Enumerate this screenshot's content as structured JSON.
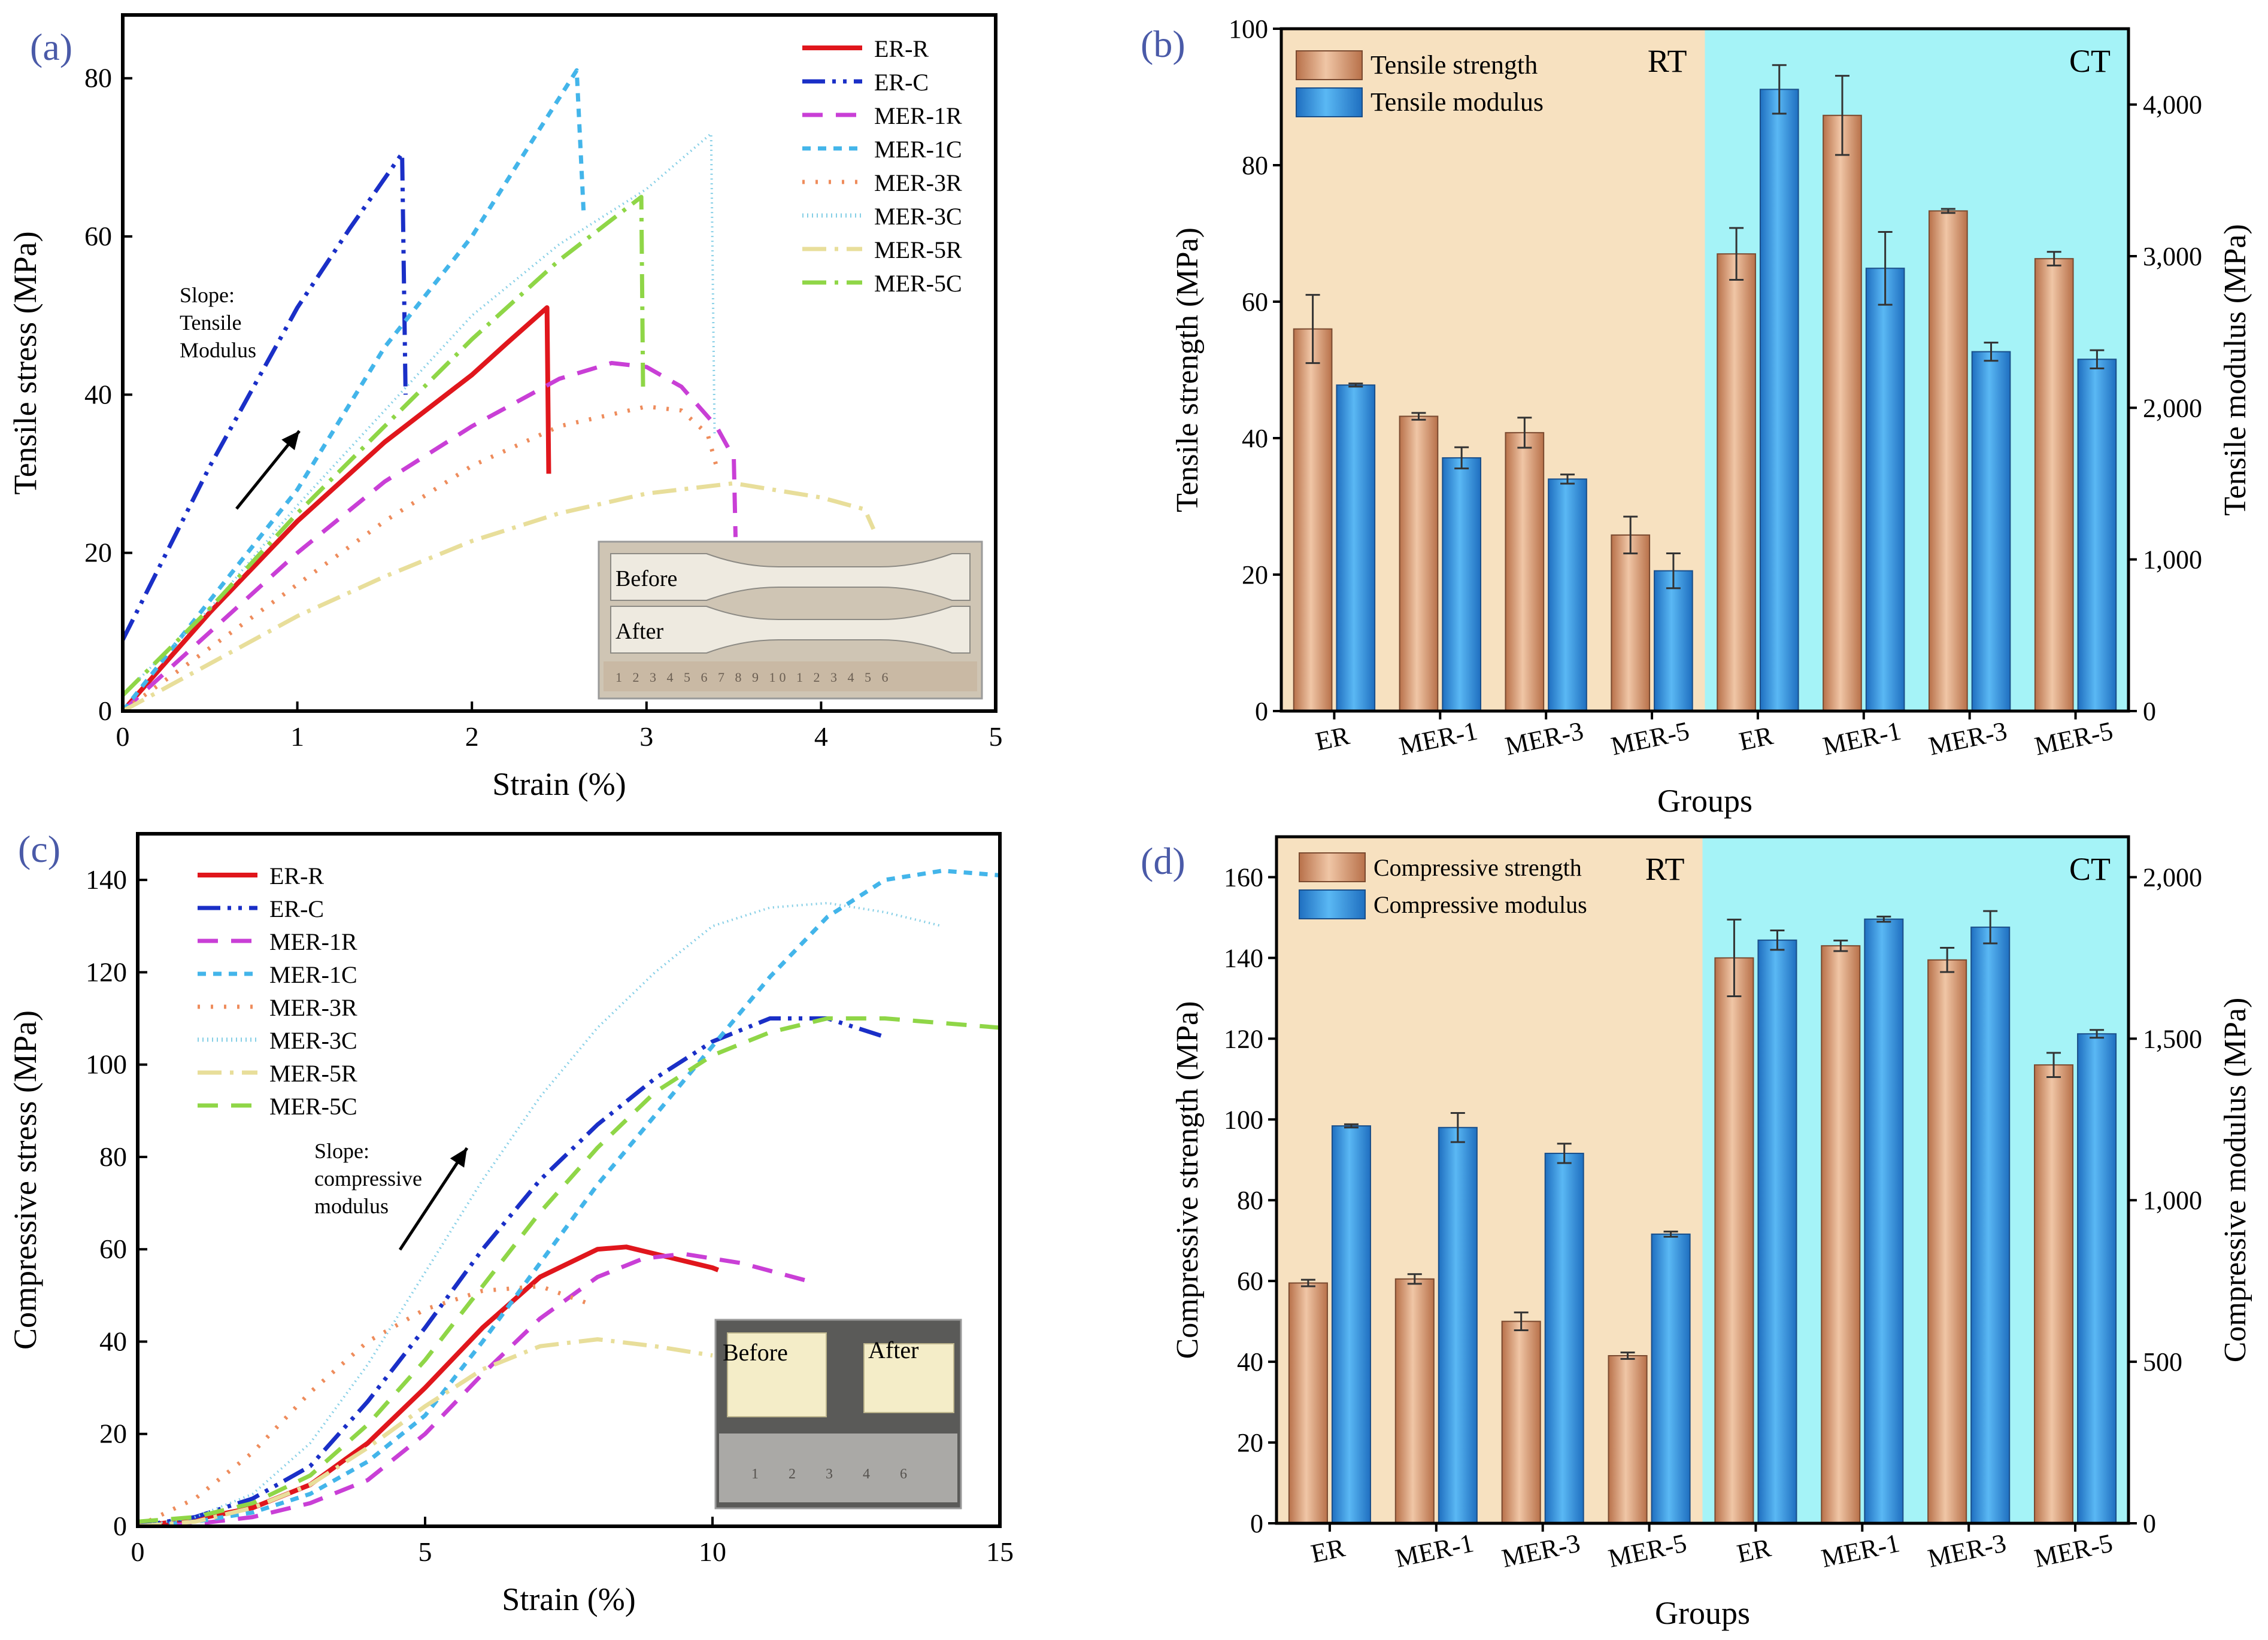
{
  "colors": {
    "ER-R": "#e0161c",
    "ER-C": "#1a2fc7",
    "MER-1R": "#c93fd6",
    "MER-1C": "#43b5ea",
    "MER-3R": "#ee8c5c",
    "MER-3C": "#86cfe6",
    "MER-5R": "#e8de9a",
    "MER-5C": "#8fd647",
    "strength_bar": "#d59a76",
    "modulus_bar": "#2e8fe0",
    "rt_bg": "#f7e1c0",
    "ct_bg": "#a5f3f7",
    "panel_label": "#4a5aa8"
  },
  "chart_data": [
    {
      "id": "a",
      "panel_label": "(a)",
      "type": "line",
      "xlabel": "Strain (%)",
      "ylabel": "Tensile stress (MPa)",
      "xlim": [
        0,
        5
      ],
      "ylim": [
        0,
        88
      ],
      "xticks": [
        0,
        1,
        2,
        3,
        4,
        5
      ],
      "yticks": [
        0,
        20,
        40,
        60,
        80
      ],
      "legend_position": "top-right",
      "annotation": {
        "lines": [
          "Slope:",
          "Tensile",
          "Modulus"
        ]
      },
      "inset": {
        "labels": [
          "Before",
          "After"
        ],
        "ruler": "1 2 3 4 5 6 7 8 9 10 1 2 3 4 5 6"
      },
      "series": [
        {
          "name": "ER-R",
          "style": "solid",
          "points": [
            [
              0,
              0
            ],
            [
              0.5,
              12.5
            ],
            [
              1,
              24
            ],
            [
              1.5,
              34
            ],
            [
              2,
              42.5
            ],
            [
              2.2,
              46.5
            ],
            [
              2.43,
              51
            ],
            [
              2.44,
              30
            ]
          ]
        },
        {
          "name": "ER-C",
          "style": "dashdotdot",
          "points": [
            [
              0,
              9
            ],
            [
              0.5,
              31
            ],
            [
              1,
              51
            ],
            [
              1.3,
              61
            ],
            [
              1.6,
              70.5
            ],
            [
              1.62,
              40
            ]
          ]
        },
        {
          "name": "MER-1R",
          "style": "dash",
          "points": [
            [
              0,
              0
            ],
            [
              0.5,
              10
            ],
            [
              1,
              20
            ],
            [
              1.5,
              29
            ],
            [
              2,
              36
            ],
            [
              2.5,
              42
            ],
            [
              2.8,
              44
            ],
            [
              3,
              43.5
            ],
            [
              3.2,
              41
            ],
            [
              3.4,
              36
            ],
            [
              3.5,
              32
            ],
            [
              3.51,
              22
            ]
          ]
        },
        {
          "name": "MER-1C",
          "style": "shortdash",
          "points": [
            [
              0,
              0
            ],
            [
              0.5,
              14
            ],
            [
              1,
              28
            ],
            [
              1.5,
              46
            ],
            [
              2,
              60
            ],
            [
              2.6,
              81
            ],
            [
              2.64,
              63
            ]
          ]
        },
        {
          "name": "MER-3R",
          "style": "dot",
          "points": [
            [
              0,
              0
            ],
            [
              0.5,
              8
            ],
            [
              1,
              16
            ],
            [
              1.5,
              24
            ],
            [
              2,
              31
            ],
            [
              2.5,
              36
            ],
            [
              3,
              38.5
            ],
            [
              3.2,
              38
            ],
            [
              3.35,
              35
            ],
            [
              3.4,
              31
            ]
          ]
        },
        {
          "name": "MER-3C",
          "style": "finedot",
          "points": [
            [
              0,
              2
            ],
            [
              0.5,
              13
            ],
            [
              1,
              26
            ],
            [
              1.5,
              38
            ],
            [
              2,
              50
            ],
            [
              2.5,
              59
            ],
            [
              3,
              66
            ],
            [
              3.37,
              73
            ],
            [
              3.39,
              35
            ]
          ]
        },
        {
          "name": "MER-5R",
          "style": "dashdot",
          "points": [
            [
              0,
              0
            ],
            [
              0.5,
              6
            ],
            [
              1,
              12
            ],
            [
              1.5,
              17
            ],
            [
              2,
              21.5
            ],
            [
              2.5,
              25
            ],
            [
              3,
              27.5
            ],
            [
              3.5,
              28.8
            ],
            [
              4,
              27
            ],
            [
              4.25,
              25.5
            ],
            [
              4.3,
              23
            ]
          ]
        },
        {
          "name": "MER-5C",
          "style": "dashdot",
          "points": [
            [
              0,
              2
            ],
            [
              0.5,
              13
            ],
            [
              1,
              25
            ],
            [
              1.5,
              36
            ],
            [
              2,
              47
            ],
            [
              2.5,
              57
            ],
            [
              2.97,
              65
            ],
            [
              2.98,
              41
            ]
          ]
        }
      ]
    },
    {
      "id": "b",
      "panel_label": "(b)",
      "type": "bar",
      "xlabel": "Groups",
      "ylabel": "Tensile strength (MPa)",
      "ylabel_right": "Tensile modulus (MPa)",
      "ylim": [
        0,
        100
      ],
      "ylim_right": [
        0,
        4500
      ],
      "yticks": [
        0,
        20,
        40,
        60,
        80,
        100
      ],
      "yticks_right": [
        "0",
        "1,000",
        "2,000",
        "3,000",
        "4,000"
      ],
      "yticks_right_values": [
        0,
        1000,
        2000,
        3000,
        4000
      ],
      "region_labels": [
        "RT",
        "CT"
      ],
      "categories": [
        "ER",
        "MER-1",
        "MER-3",
        "MER-5",
        "ER",
        "MER-1",
        "MER-3",
        "MER-5"
      ],
      "series": [
        {
          "name": "Tensile strength",
          "axis": "left",
          "values": [
            56,
            43.2,
            40.8,
            25.8,
            67,
            87.3,
            73.3,
            66.3
          ],
          "errors": [
            5,
            0.5,
            2.2,
            2.7,
            3.8,
            5.8,
            0.3,
            1
          ]
        },
        {
          "name": "Tensile modulus",
          "axis": "right",
          "values": [
            2150,
            1670,
            1530,
            925,
            4100,
            2920,
            2370,
            2320
          ],
          "errors": [
            10,
            70,
            30,
            115,
            160,
            240,
            60,
            60
          ]
        }
      ]
    },
    {
      "id": "c",
      "panel_label": "(c)",
      "type": "line",
      "xlabel": "Strain (%)",
      "ylabel": "Compressive stress (MPa)",
      "xlim": [
        0,
        15
      ],
      "ylim": [
        0,
        150
      ],
      "xticks": [
        0,
        5,
        10,
        15
      ],
      "yticks": [
        0,
        20,
        40,
        60,
        80,
        100,
        120,
        140
      ],
      "legend_position": "top-left",
      "annotation": {
        "lines": [
          "Slope:",
          "compressive",
          "modulus"
        ]
      },
      "inset": {
        "labels": [
          "Before",
          "After"
        ],
        "ruler": "1 2 3 4 6"
      },
      "series": [
        {
          "name": "ER-R",
          "style": "solid",
          "points": [
            [
              0,
              0
            ],
            [
              1,
              1.5
            ],
            [
              2,
              4
            ],
            [
              3,
              9
            ],
            [
              4,
              18
            ],
            [
              5,
              30
            ],
            [
              6,
              43
            ],
            [
              7,
              54
            ],
            [
              8,
              60
            ],
            [
              8.5,
              60.5
            ],
            [
              9,
              59
            ],
            [
              10,
              56
            ],
            [
              10.1,
              55.5
            ]
          ]
        },
        {
          "name": "ER-C",
          "style": "dashdotdot",
          "points": [
            [
              0,
              0
            ],
            [
              1,
              2
            ],
            [
              2,
              6
            ],
            [
              3,
              13
            ],
            [
              4,
              27
            ],
            [
              5,
              43
            ],
            [
              6,
              60
            ],
            [
              7,
              75
            ],
            [
              8,
              87
            ],
            [
              9,
              97
            ],
            [
              10,
              105
            ],
            [
              11,
              110
            ],
            [
              12,
              110
            ],
            [
              12.5,
              108
            ],
            [
              13,
              106
            ]
          ]
        },
        {
          "name": "MER-1R",
          "style": "dash",
          "points": [
            [
              0,
              0
            ],
            [
              1,
              0.5
            ],
            [
              2,
              2
            ],
            [
              3,
              5
            ],
            [
              4,
              10
            ],
            [
              5,
              20
            ],
            [
              6,
              33
            ],
            [
              7,
              45
            ],
            [
              8,
              54
            ],
            [
              8.8,
              58
            ],
            [
              9.5,
              59
            ],
            [
              10.5,
              57
            ],
            [
              11.7,
              53
            ]
          ]
        },
        {
          "name": "MER-1C",
          "style": "shortdash",
          "points": [
            [
              0,
              0
            ],
            [
              1,
              1
            ],
            [
              2,
              3
            ],
            [
              3,
              7
            ],
            [
              4,
              14
            ],
            [
              5,
              24
            ],
            [
              6,
              40
            ],
            [
              7,
              57
            ],
            [
              8,
              74
            ],
            [
              9,
              89
            ],
            [
              10,
              104
            ],
            [
              11,
              119
            ],
            [
              12,
              132
            ],
            [
              13,
              140
            ],
            [
              14,
              142
            ],
            [
              15,
              141
            ]
          ]
        },
        {
          "name": "MER-3R",
          "style": "dot",
          "points": [
            [
              0,
              0
            ],
            [
              1,
              6
            ],
            [
              2,
              16
            ],
            [
              3,
              29
            ],
            [
              4,
              40
            ],
            [
              5,
              47
            ],
            [
              6,
              51
            ],
            [
              7,
              52
            ],
            [
              7.9,
              48
            ]
          ]
        },
        {
          "name": "MER-3C",
          "style": "finedot",
          "points": [
            [
              0,
              0
            ],
            [
              1,
              2
            ],
            [
              2,
              7
            ],
            [
              3,
              18
            ],
            [
              4,
              35
            ],
            [
              5,
              55
            ],
            [
              6,
              75
            ],
            [
              7,
              93
            ],
            [
              8,
              108
            ],
            [
              9,
              120
            ],
            [
              10,
              130
            ],
            [
              11,
              134
            ],
            [
              12,
              135
            ],
            [
              13,
              133
            ],
            [
              14,
              130
            ]
          ]
        },
        {
          "name": "MER-5R",
          "style": "dashdot",
          "points": [
            [
              0,
              0
            ],
            [
              1,
              1
            ],
            [
              2,
              4
            ],
            [
              3,
              9
            ],
            [
              4,
              17
            ],
            [
              5,
              26
            ],
            [
              6,
              34
            ],
            [
              7,
              39
            ],
            [
              8,
              40.5
            ],
            [
              9,
              39
            ],
            [
              10,
              37
            ]
          ]
        },
        {
          "name": "MER-5C",
          "style": "dash",
          "points": [
            [
              0,
              1
            ],
            [
              1,
              2
            ],
            [
              2,
              5
            ],
            [
              3,
              11
            ],
            [
              4,
              22
            ],
            [
              5,
              36
            ],
            [
              6,
              52
            ],
            [
              7,
              68
            ],
            [
              8,
              82
            ],
            [
              9,
              94
            ],
            [
              10,
              102
            ],
            [
              11,
              107
            ],
            [
              12,
              110
            ],
            [
              13,
              110
            ],
            [
              14,
              109
            ],
            [
              15,
              108
            ]
          ]
        }
      ]
    },
    {
      "id": "d",
      "panel_label": "(d)",
      "type": "bar",
      "xlabel": "Groups",
      "ylabel": "Compressive  strength (MPa)",
      "ylabel_right": "Compressive modulus (MPa)",
      "ylim": [
        0,
        170
      ],
      "ylim_right": [
        0,
        2125
      ],
      "yticks": [
        0,
        20,
        40,
        60,
        80,
        100,
        120,
        140,
        160
      ],
      "yticks_right": [
        "0",
        "500",
        "1,000",
        "1,500",
        "2,000"
      ],
      "yticks_right_values": [
        0,
        500,
        1000,
        1500,
        2000
      ],
      "region_labels": [
        "RT",
        "CT"
      ],
      "categories": [
        "ER",
        "MER-1",
        "MER-3",
        "MER-5",
        "ER",
        "MER-1",
        "MER-3",
        "MER-5"
      ],
      "series": [
        {
          "name": "Compressive  strength",
          "axis": "left",
          "values": [
            59.5,
            60.5,
            50,
            41.5,
            140,
            143,
            139.5,
            113.5
          ],
          "errors": [
            0.8,
            1.2,
            2.2,
            0.8,
            9.5,
            1.3,
            3,
            3
          ]
        },
        {
          "name": "Compressive modulus",
          "axis": "right",
          "values": [
            1230,
            1225,
            1145,
            895,
            1805,
            1870,
            1845,
            1515
          ],
          "errors": [
            5,
            45,
            30,
            8,
            30,
            8,
            50,
            12
          ]
        }
      ]
    }
  ]
}
